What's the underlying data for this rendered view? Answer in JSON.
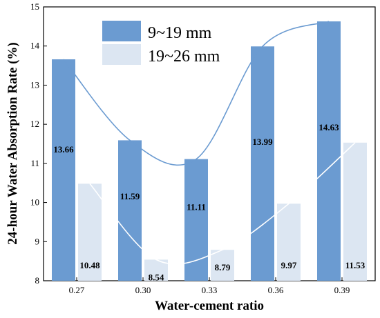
{
  "chart_data": {
    "type": "bar",
    "xlabel": "Water-cement ratio",
    "ylabel": "24-hour Water Absorption Rate (%)",
    "categories": [
      "0.27",
      "0.30",
      "0.33",
      "0.36",
      "0.39"
    ],
    "ylim": [
      8,
      15
    ],
    "yticks": [
      "8",
      "9",
      "10",
      "11",
      "12",
      "13",
      "14",
      "15"
    ],
    "legend_position": "top-center",
    "trend_lines": true,
    "series": [
      {
        "name": "9~19 mm",
        "values": [
          13.66,
          11.59,
          11.11,
          13.99,
          14.63
        ],
        "labels": [
          "13.66",
          "11.59",
          "11.11",
          "13.99",
          "14.63"
        ],
        "color": "#6b9bd1"
      },
      {
        "name": "19~26 mm",
        "values": [
          10.48,
          8.54,
          8.79,
          9.97,
          11.53
        ],
        "labels": [
          "10.48",
          "8.54",
          "8.79",
          "9.97",
          "11.53"
        ],
        "color": "#dce6f2"
      }
    ]
  }
}
